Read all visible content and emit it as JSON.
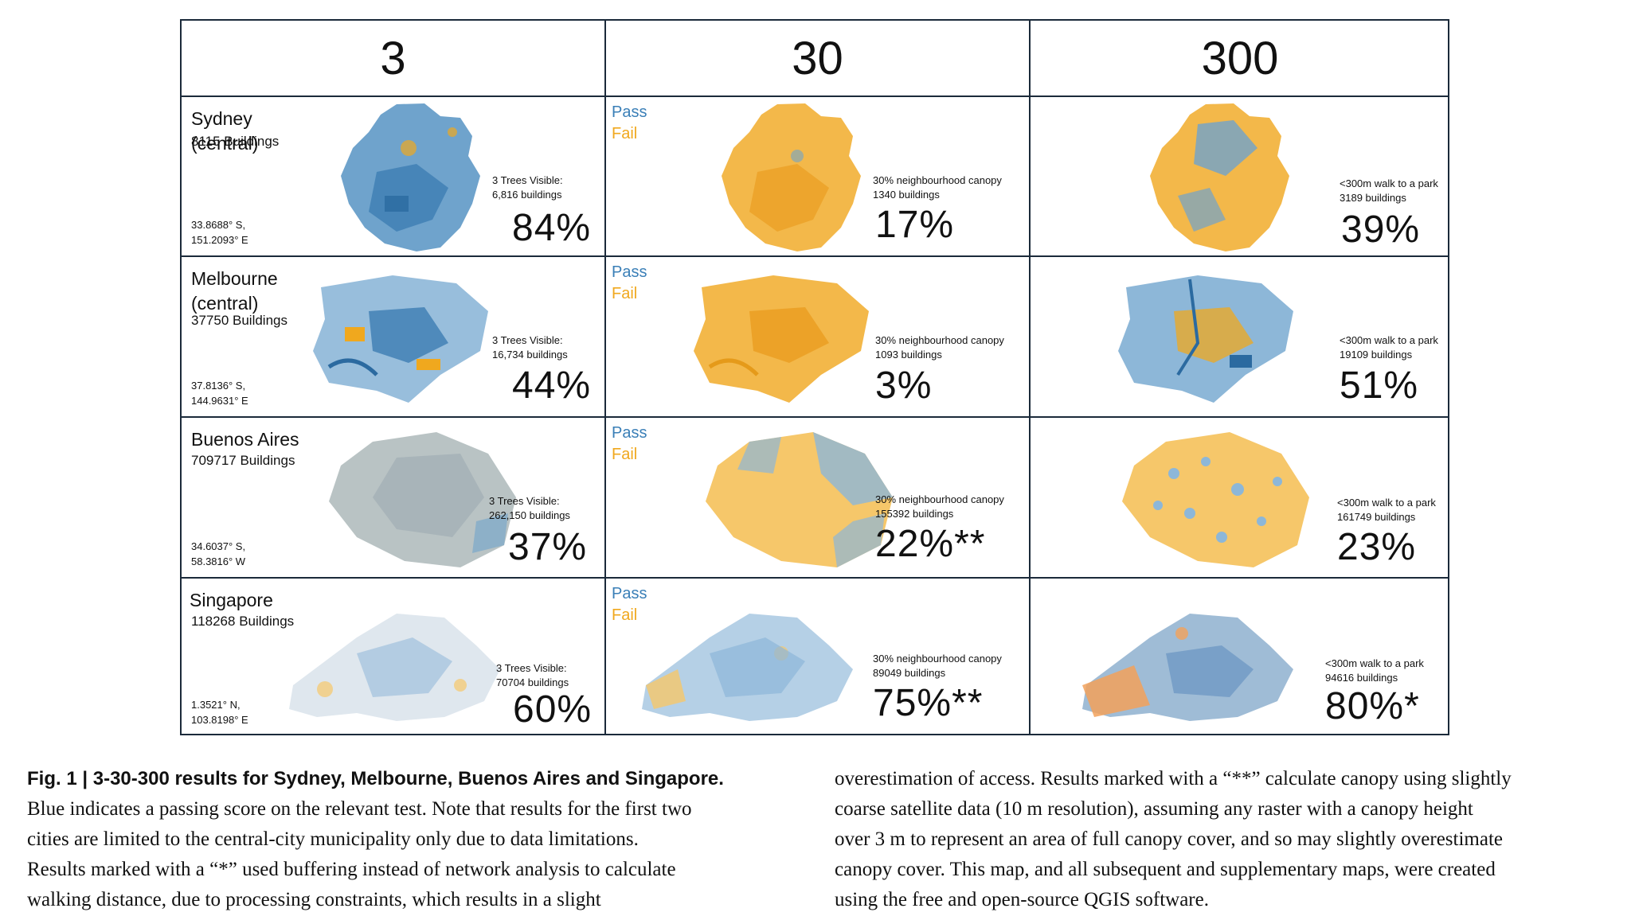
{
  "headers": [
    "3",
    "30",
    "300"
  ],
  "legend": {
    "pass": "Pass",
    "fail": "Fail"
  },
  "colors": {
    "pass": "#3a7fb7",
    "fail": "#f0a81e",
    "border": "#1b2a3a"
  },
  "rows": [
    {
      "city": "Sydney (central)",
      "buildings": "8115 Buildings",
      "coord1": "33.8688° S,",
      "coord2": "151.2093° E",
      "c3": {
        "note1": "3 Trees Visible:",
        "note2": "6,816 buildings",
        "pct": "84%"
      },
      "c30": {
        "note1": "30% neighbourhood canopy",
        "note2": "1340 buildings",
        "pct": "17%"
      },
      "c300": {
        "note1": "<300m walk to a park",
        "note2": "3189 buildings",
        "pct": "39%"
      }
    },
    {
      "city": "Melbourne (central)",
      "buildings": "37750 Buildings",
      "coord1": "37.8136° S,",
      "coord2": "144.9631° E",
      "c3": {
        "note1": "3 Trees Visible:",
        "note2": "16,734 buildings",
        "pct": "44%"
      },
      "c30": {
        "note1": "30% neighbourhood canopy",
        "note2": "1093 buildings",
        "pct": "3%"
      },
      "c300": {
        "note1": "<300m walk to a park",
        "note2": "19109 buildings",
        "pct": "51%"
      }
    },
    {
      "city": "Buenos Aires",
      "buildings": "709717 Buildings",
      "coord1": "34.6037° S,",
      "coord2": "58.3816° W",
      "c3": {
        "note1": "3 Trees Visible:",
        "note2": "262,150 buildings",
        "pct": "37%"
      },
      "c30": {
        "note1": "30% neighbourhood canopy",
        "note2": "155392 buildings",
        "pct": "22%**"
      },
      "c300": {
        "note1": "<300m walk to a park",
        "note2": "161749 buildings",
        "pct": "23%"
      }
    },
    {
      "city": "Singapore",
      "buildings": "118268 Buildings",
      "coord1": "1.3521° N,",
      "coord2": "103.8198° E",
      "c3": {
        "note1": "3 Trees Visible:",
        "note2": "70704 buildings",
        "pct": "60%"
      },
      "c30": {
        "note1": "30% neighbourhood canopy",
        "note2": "89049 buildings",
        "pct": "75%**"
      },
      "c300": {
        "note1": "<300m walk to a park",
        "note2": "94616 buildings",
        "pct": "80%*"
      }
    }
  ],
  "caption": {
    "title": "Fig. 1 | 3-30-300 results for Sydney, Melbourne, Buenos Aires and Singapore.",
    "col1_lines": [
      "Blue indicates a passing score on the relevant test. Note that results for the first two",
      "cities are limited to the central-city municipality only due to data limitations.",
      "Results marked with a “*” used buffering instead of network analysis to calculate",
      "walking distance, due to processing constraints, which results in a slight"
    ],
    "col2_lines": [
      "overestimation of access. Results marked with a “**” calculate canopy using slightly",
      "coarse satellite data (10 m resolution), assuming any raster with a canopy height",
      "over 3 m to represent an area of full canopy cover, and so may slightly overestimate",
      "canopy cover. This map, and all subsequent and supplementary maps, were created",
      "using the free and open-source QGIS software."
    ]
  }
}
